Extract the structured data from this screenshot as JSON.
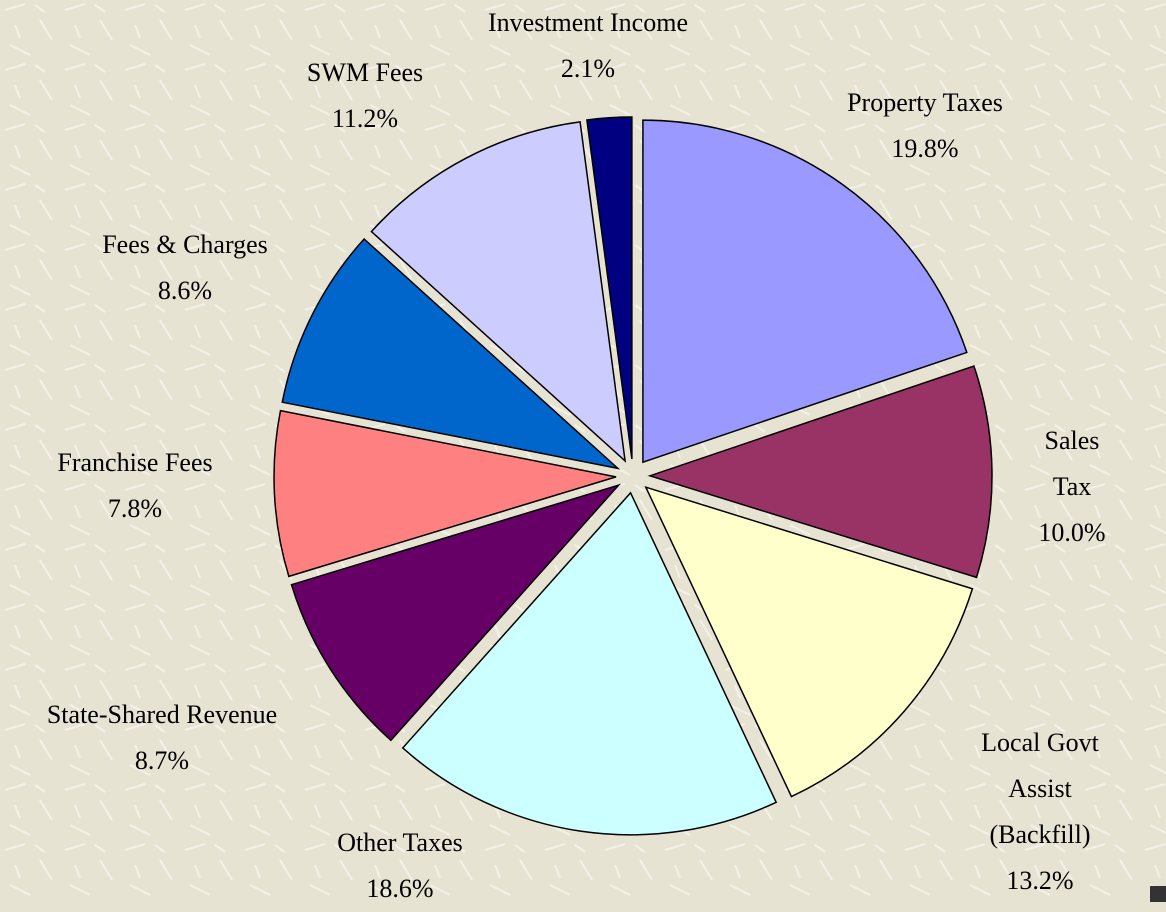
{
  "chart_data": {
    "type": "pie",
    "categories": [
      "Property Taxes",
      "Sales Tax",
      "Local Govt Assist\n(Backfill)",
      "Other Taxes",
      "State-Shared Revenue",
      "Franchise Fees",
      "Fees & Charges",
      "SWM Fees",
      "Investment Income"
    ],
    "values": [
      19.8,
      10.0,
      13.2,
      18.6,
      8.7,
      7.8,
      8.6,
      11.2,
      2.1
    ],
    "value_labels": [
      "19.8%",
      "10.0%",
      "13.2%",
      "18.6%",
      "8.7%",
      "7.8%",
      "8.6%",
      "11.2%",
      "2.1%"
    ],
    "colors": [
      "#9999ff",
      "#993366",
      "#ffffcc",
      "#ccffff",
      "#660066",
      "#ff8080",
      "#0066cc",
      "#ccccff",
      "#000080"
    ]
  }
}
